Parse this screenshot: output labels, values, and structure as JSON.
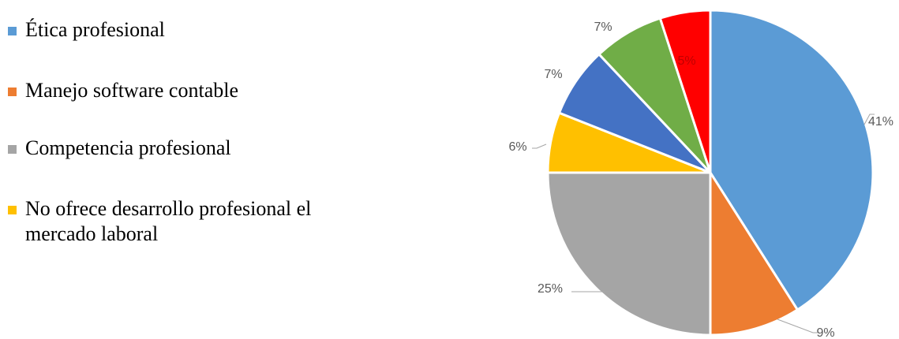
{
  "chart_data": {
    "type": "pie",
    "categories": [
      "Ética profesional",
      "Manejo software contable",
      "Competencia profesional",
      "No ofrece desarrollo profesional el mercado laboral",
      null,
      null,
      null
    ],
    "values": [
      41,
      9,
      25,
      6,
      7,
      7,
      5
    ],
    "value_labels": [
      "41%",
      "9%",
      "25%",
      "6%",
      "7%",
      "7%",
      "5%"
    ],
    "colors": [
      "#5b9bd5",
      "#ed7d31",
      "#a5a5a5",
      "#ffc000",
      "#4472c4",
      "#70ad47",
      "#ff0000"
    ],
    "legend": "left"
  }
}
